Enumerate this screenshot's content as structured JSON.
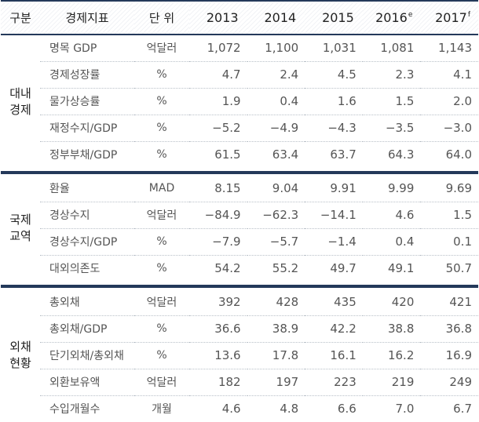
{
  "header": {
    "category": "구분",
    "indicator": "경제지표",
    "unit": "단 위",
    "years": [
      {
        "year": "2013",
        "sup": ""
      },
      {
        "year": "2014",
        "sup": ""
      },
      {
        "year": "2015",
        "sup": ""
      },
      {
        "year": "2016",
        "sup": "e"
      },
      {
        "year": "2017",
        "sup": "f"
      }
    ]
  },
  "sections": [
    {
      "name_line1": "대내",
      "name_line2": "경제",
      "rows": [
        {
          "indicator": "명목 GDP",
          "unit": "억달러",
          "values": [
            "1,072",
            "1,100",
            "1,031",
            "1,081",
            "1,143"
          ]
        },
        {
          "indicator": "경제성장률",
          "unit": "%",
          "values": [
            "4.7",
            "2.4",
            "4.5",
            "2.3",
            "4.1"
          ]
        },
        {
          "indicator": "물가상승률",
          "unit": "%",
          "values": [
            "1.9",
            "0.4",
            "1.6",
            "1.5",
            "2.0"
          ]
        },
        {
          "indicator": "재정수지/GDP",
          "unit": "%",
          "values": [
            "−5.2",
            "−4.9",
            "−4.3",
            "−3.5",
            "−3.0"
          ]
        },
        {
          "indicator": "정부부채/GDP",
          "unit": "%",
          "values": [
            "61.5",
            "63.4",
            "63.7",
            "64.3",
            "64.0"
          ]
        }
      ]
    },
    {
      "name_line1": "국제",
      "name_line2": "교역",
      "rows": [
        {
          "indicator": "환율",
          "unit": "MAD",
          "values": [
            "8.15",
            "9.04",
            "9.91",
            "9.99",
            "9.69"
          ]
        },
        {
          "indicator": "경상수지",
          "unit": "억달러",
          "values": [
            "−84.9",
            "−62.3",
            "−14.1",
            "4.6",
            "1.5"
          ]
        },
        {
          "indicator": "경상수지/GDP",
          "unit": "%",
          "values": [
            "−7.9",
            "−5.7",
            "−1.4",
            "0.4",
            "0.1"
          ]
        },
        {
          "indicator": "대외의존도",
          "unit": "%",
          "values": [
            "54.2",
            "55.2",
            "49.7",
            "49.1",
            "50.7"
          ]
        }
      ]
    },
    {
      "name_line1": "외채",
      "name_line2": "현황",
      "rows": [
        {
          "indicator": "총외채",
          "unit": "억달러",
          "values": [
            "392",
            "428",
            "435",
            "420",
            "421"
          ]
        },
        {
          "indicator": "총외채/GDP",
          "unit": "%",
          "values": [
            "36.6",
            "38.9",
            "42.2",
            "38.8",
            "36.8"
          ]
        },
        {
          "indicator": "단기외채/총외채",
          "unit": "%",
          "values": [
            "13.6",
            "17.8",
            "16.1",
            "16.2",
            "16.9"
          ]
        },
        {
          "indicator": "외환보유액",
          "unit": "억달러",
          "values": [
            "182",
            "197",
            "223",
            "219",
            "249"
          ]
        },
        {
          "indicator": "수입개월수",
          "unit": "개월",
          "values": [
            "4.6",
            "4.8",
            "6.6",
            "7.0",
            "6.7"
          ]
        }
      ]
    }
  ],
  "colors": {
    "rule": "#24395a",
    "text_dark": "#222222",
    "text_body": "#555555"
  }
}
